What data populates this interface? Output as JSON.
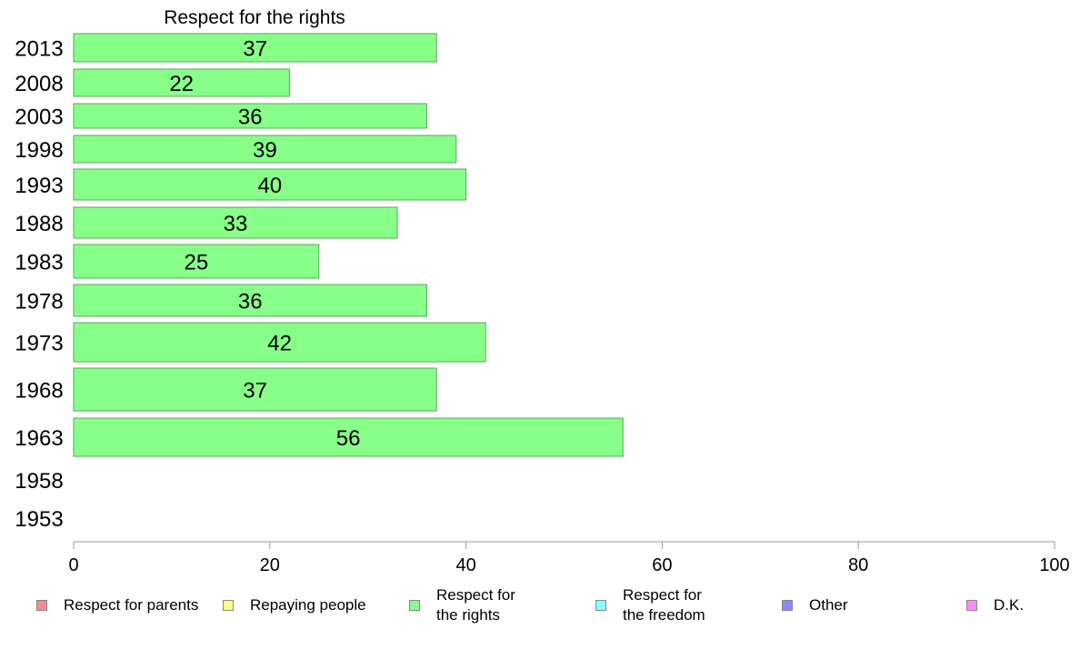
{
  "chart_data": {
    "type": "bar",
    "orientation": "horizontal",
    "title": "Respect for the rights",
    "categories": [
      "2013",
      "2008",
      "2003",
      "1998",
      "1993",
      "1988",
      "1983",
      "1978",
      "1973",
      "1968",
      "1963",
      "1958",
      "1953"
    ],
    "series": [
      {
        "name": "Respect for the rights",
        "color": "#88ff88",
        "values": [
          37,
          22,
          36,
          39,
          40,
          33,
          25,
          36,
          42,
          37,
          56,
          null,
          null
        ],
        "labels": [
          "37",
          "22",
          "36",
          "39",
          "40",
          "33",
          "25",
          "36",
          "42",
          "37",
          "56",
          "",
          ""
        ]
      }
    ],
    "xlim": [
      0,
      100
    ],
    "xticks": [
      "0",
      "20",
      "40",
      "60",
      "80",
      "100"
    ],
    "grid": false,
    "legend_position": "bottom"
  },
  "legend": [
    {
      "label": "Respect for parents",
      "color": "#ff8888"
    },
    {
      "label": "Repaying people",
      "color": "#ffff88"
    },
    {
      "label": "Respect for\nthe rights",
      "color": "#88ff88"
    },
    {
      "label": "Respect for\nthe freedom",
      "color": "#88ffff"
    },
    {
      "label": "Other",
      "color": "#8888ff"
    },
    {
      "label": "D.K.",
      "color": "#ff88ff"
    }
  ]
}
